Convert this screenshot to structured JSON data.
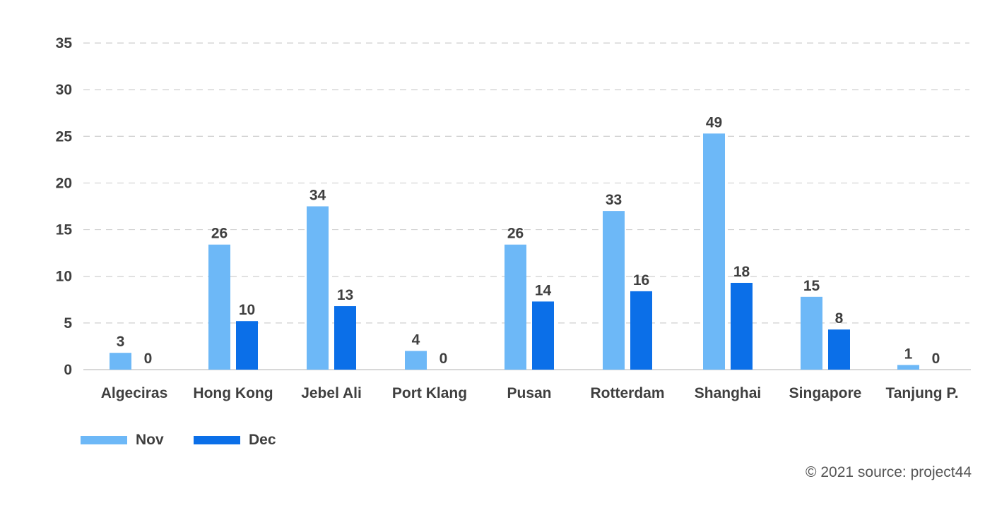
{
  "source_note": "© 2021 source: project44",
  "colors": {
    "nov": "#6DB8F7",
    "dec": "#0B6FE8",
    "grid": "#CFCFCF",
    "axis": "#CCCCCC",
    "text": "#3F3F3F",
    "label": "#555555"
  },
  "chart_data": {
    "type": "bar",
    "categories": [
      "Algeciras",
      "Hong Kong",
      "Jebel Ali",
      "Port Klang",
      "Pusan",
      "Rotterdam",
      "Shanghai",
      "Singapore",
      "Tanjung P."
    ],
    "series": [
      {
        "name": "Nov",
        "values": [
          1.8,
          13.4,
          17.5,
          2.0,
          13.4,
          17.0,
          25.3,
          7.8,
          0.5
        ],
        "data_labels": [
          "3",
          "26",
          "34",
          "4",
          "26",
          "33",
          "49",
          "15",
          "1"
        ]
      },
      {
        "name": "Dec",
        "values": [
          0,
          5.2,
          6.8,
          0,
          7.3,
          8.4,
          9.3,
          4.3,
          0
        ],
        "data_labels": [
          "0",
          "10",
          "13",
          "0",
          "14",
          "16",
          "18",
          "8",
          "0"
        ]
      }
    ],
    "yticks": [
      "0",
      "5",
      "10",
      "15",
      "20",
      "25",
      "30",
      "35"
    ],
    "ylim": [
      0,
      35
    ],
    "grid": true,
    "legend_position": "bottom-left"
  }
}
